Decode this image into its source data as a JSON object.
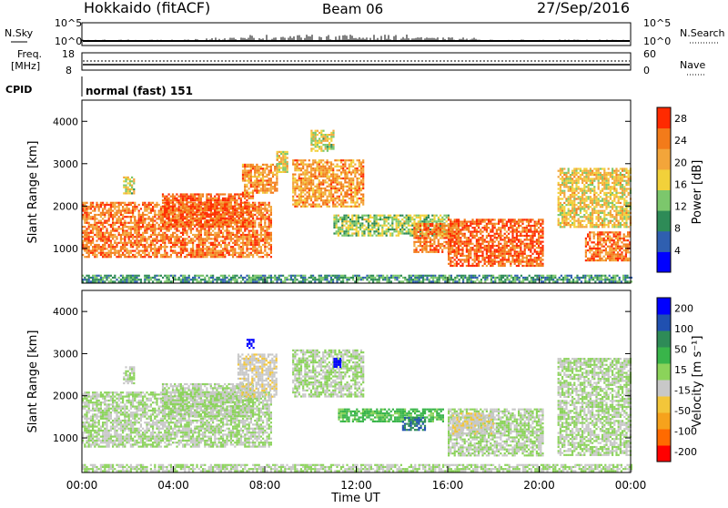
{
  "header": {
    "station": "Hokkaido (fitACF)",
    "beam": "Beam 06",
    "date": "27/Sep/2016"
  },
  "status_panels": {
    "nsky": {
      "label": "N.Sky",
      "ticks": [
        "10^5",
        "10^0"
      ]
    },
    "nsearch": {
      "label": "N.Search",
      "ticks": [
        "10^5",
        "10^0"
      ]
    },
    "freq": {
      "label_line1": "Freq.",
      "label_line2": "[MHz]",
      "ticks": [
        "18",
        "8"
      ]
    },
    "nave": {
      "label": "Nave",
      "ticks": [
        "60",
        "0"
      ]
    },
    "cpid": {
      "label": "CPID",
      "value": "normal (fast) 151"
    }
  },
  "chart_data": [
    {
      "type": "heatmap",
      "panel": "power",
      "xlabel": "Time UT",
      "ylabel": "Slant Range [km]",
      "x_ticks": [
        "00:00",
        "04:00",
        "08:00",
        "12:00",
        "16:00",
        "20:00",
        "00:00"
      ],
      "x_range_hours": [
        0,
        24
      ],
      "y_ticks": [
        1000,
        2000,
        3000,
        4000
      ],
      "y_range_km": [
        180,
        4500
      ],
      "colorbar": {
        "label": "Power [dB]",
        "ticks": [
          "4",
          "8",
          "12",
          "16",
          "20",
          "24",
          "28"
        ],
        "range": [
          0,
          30
        ],
        "colors": [
          "#0000ff",
          "#2f5fb0",
          "#2e8b57",
          "#7cc76c",
          "#f2d13a",
          "#f3a53a",
          "#f37b1a",
          "#ff2a00"
        ]
      },
      "regions": [
        {
          "t": [
            0.0,
            8.3
          ],
          "r": [
            800,
            2100
          ],
          "level": 24
        },
        {
          "t": [
            1.8,
            2.3
          ],
          "r": [
            2300,
            2700
          ],
          "level": 16
        },
        {
          "t": [
            3.5,
            7.5
          ],
          "r": [
            1500,
            2300
          ],
          "level": 26
        },
        {
          "t": [
            7.0,
            8.5
          ],
          "r": [
            2300,
            3000
          ],
          "level": 22
        },
        {
          "t": [
            8.5,
            9.0
          ],
          "r": [
            2800,
            3300
          ],
          "level": 18
        },
        {
          "t": [
            9.2,
            12.3
          ],
          "r": [
            2000,
            3100
          ],
          "level": 22
        },
        {
          "t": [
            10.0,
            11.0
          ],
          "r": [
            3300,
            3800
          ],
          "level": 16
        },
        {
          "t": [
            11.0,
            16.0
          ],
          "r": [
            1300,
            1800
          ],
          "level": 14
        },
        {
          "t": [
            14.5,
            16.5
          ],
          "r": [
            900,
            1600
          ],
          "level": 24
        },
        {
          "t": [
            16.0,
            20.2
          ],
          "r": [
            600,
            1700
          ],
          "level": 26
        },
        {
          "t": [
            20.8,
            24.0
          ],
          "r": [
            1500,
            2900
          ],
          "level": 18
        },
        {
          "t": [
            22.0,
            24.0
          ],
          "r": [
            700,
            1400
          ],
          "level": 24
        },
        {
          "t": [
            0.0,
            24.0
          ],
          "r": [
            200,
            380
          ],
          "level": 10
        }
      ]
    },
    {
      "type": "heatmap",
      "panel": "velocity",
      "xlabel": "Time UT",
      "ylabel": "Slant Range [km]",
      "x_ticks": [
        "00:00",
        "04:00",
        "08:00",
        "12:00",
        "16:00",
        "20:00",
        "00:00"
      ],
      "x_range_hours": [
        0,
        24
      ],
      "y_ticks": [
        1000,
        2000,
        3000,
        4000
      ],
      "y_range_km": [
        180,
        4500
      ],
      "colorbar": {
        "label": "Velocity [m s⁻¹]",
        "ticks": [
          "200",
          "100",
          "50",
          "15",
          "-15",
          "-50",
          "-100",
          "-200"
        ],
        "range": [
          -250,
          250
        ],
        "colors": [
          "#ff0000",
          "#ff6a00",
          "#f6a21c",
          "#f3c63a",
          "#c8c8c8",
          "#8bd35a",
          "#39b54a",
          "#2e8b57",
          "#2050b0",
          "#0000ff"
        ]
      },
      "regions": [
        {
          "t": [
            0.0,
            8.3
          ],
          "r": [
            800,
            2100
          ],
          "level": 0
        },
        {
          "t": [
            1.8,
            2.3
          ],
          "r": [
            2300,
            2700
          ],
          "level": 0
        },
        {
          "t": [
            3.5,
            7.5
          ],
          "r": [
            1500,
            2300
          ],
          "level": 0
        },
        {
          "t": [
            6.8,
            8.5
          ],
          "r": [
            2000,
            3000
          ],
          "level": -40
        },
        {
          "t": [
            7.2,
            7.5
          ],
          "r": [
            3150,
            3350
          ],
          "level": 220
        },
        {
          "t": [
            9.2,
            12.3
          ],
          "r": [
            2000,
            3100
          ],
          "level": 0
        },
        {
          "t": [
            11.0,
            11.3
          ],
          "r": [
            2700,
            2900
          ],
          "level": 220
        },
        {
          "t": [
            11.2,
            15.8
          ],
          "r": [
            1400,
            1700
          ],
          "level": 60
        },
        {
          "t": [
            14.0,
            15.0
          ],
          "r": [
            1200,
            1500
          ],
          "level": 150
        },
        {
          "t": [
            16.0,
            20.2
          ],
          "r": [
            600,
            1700
          ],
          "level": 0
        },
        {
          "t": [
            16.2,
            18.0
          ],
          "r": [
            1100,
            1600
          ],
          "level": -40
        },
        {
          "t": [
            20.8,
            24.0
          ],
          "r": [
            600,
            2900
          ],
          "level": 0
        },
        {
          "t": [
            0.0,
            24.0
          ],
          "r": [
            200,
            380
          ],
          "level": 0
        }
      ]
    }
  ]
}
